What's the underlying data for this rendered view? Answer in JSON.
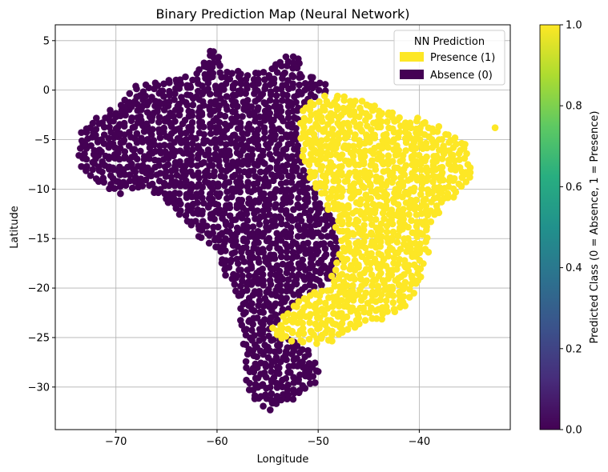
{
  "chart_data": {
    "type": "scatter",
    "title": "Binary Prediction Map (Neural Network)",
    "xlabel": "Longitude",
    "ylabel": "Latitude",
    "xlim": [
      -76,
      -31
    ],
    "ylim": [
      -34.3,
      6.6
    ],
    "xticks": [
      -70,
      -60,
      -50,
      -40
    ],
    "xtick_labels": [
      "−70",
      "−60",
      "−50",
      "−40"
    ],
    "yticks": [
      5,
      0,
      -5,
      -10,
      -15,
      -20,
      -25,
      -30
    ],
    "ytick_labels": [
      "5",
      "0",
      "−5",
      "−10",
      "−15",
      "−20",
      "−25",
      "−30"
    ],
    "grid": true,
    "legend": {
      "title": "NN Prediction",
      "position": "top-right",
      "entries": [
        {
          "label": "Presence (1)",
          "color": "#fde725"
        },
        {
          "label": "Absence (0)",
          "color": "#440154"
        }
      ]
    },
    "colorbar": {
      "label": "Predicted Class (0 = Absence, 1 = Presence)",
      "range": [
        0,
        1
      ],
      "ticks": [
        "0.0",
        "0.2",
        "0.4",
        "0.6",
        "0.8",
        "1.0"
      ],
      "colormap": "viridis"
    },
    "series": [
      {
        "name": "Absence (0)",
        "color": "#440154",
        "region_outline": [
          [
            -74,
            -4.3
          ],
          [
            -72,
            -2.8
          ],
          [
            -71,
            -2
          ],
          [
            -69.5,
            -1.3
          ],
          [
            -68,
            0.5
          ],
          [
            -66,
            0.8
          ],
          [
            -64,
            1.5
          ],
          [
            -62,
            1.8
          ],
          [
            -60.5,
            4.7
          ],
          [
            -59,
            1.8
          ],
          [
            -57,
            2
          ],
          [
            -55,
            2
          ],
          [
            -53.5,
            3.5
          ],
          [
            -52,
            4.2
          ],
          [
            -51.5,
            1.5
          ],
          [
            -50,
            1.4
          ],
          [
            -48.5,
            0.2
          ],
          [
            -49,
            -0.3
          ],
          [
            -50,
            -0.5
          ],
          [
            -51.5,
            -2
          ],
          [
            -52,
            -5
          ],
          [
            -51.5,
            -8
          ],
          [
            -50,
            -10.5
          ],
          [
            -48.5,
            -13
          ],
          [
            -47.7,
            -16
          ],
          [
            -48.5,
            -19
          ],
          [
            -51.5,
            -21
          ],
          [
            -53,
            -22.5
          ],
          [
            -55,
            -24.5
          ],
          [
            -52,
            -25.5
          ],
          [
            -50.5,
            -26.5
          ],
          [
            -49.7,
            -28.5
          ],
          [
            -50.5,
            -30
          ],
          [
            -52,
            -31
          ],
          [
            -53.5,
            -32
          ],
          [
            -55,
            -32.4
          ],
          [
            -57,
            -30.5
          ],
          [
            -57.3,
            -27
          ],
          [
            -57.5,
            -24
          ],
          [
            -58,
            -22
          ],
          [
            -58.3,
            -20.5
          ],
          [
            -60,
            -17
          ],
          [
            -62.5,
            -14
          ],
          [
            -64.5,
            -12
          ],
          [
            -66,
            -10.5
          ],
          [
            -67.5,
            -9.8
          ],
          [
            -69.5,
            -10.5
          ],
          [
            -71,
            -9.8
          ],
          [
            -73,
            -8.8
          ],
          [
            -74,
            -7.5
          ],
          [
            -73.8,
            -5.5
          ]
        ]
      },
      {
        "name": "Presence (1)",
        "color": "#fde725",
        "region_outline": [
          [
            -51.5,
            -1.5
          ],
          [
            -49,
            -0.3
          ],
          [
            -47.5,
            -0.5
          ],
          [
            -45,
            -1.3
          ],
          [
            -42,
            -2.5
          ],
          [
            -40,
            -2.8
          ],
          [
            -38,
            -3.5
          ],
          [
            -36.5,
            -4.8
          ],
          [
            -35.2,
            -5.3
          ],
          [
            -34.8,
            -7
          ],
          [
            -35,
            -9
          ],
          [
            -36,
            -10.3
          ],
          [
            -37.5,
            -12
          ],
          [
            -38.8,
            -13.5
          ],
          [
            -39,
            -16
          ],
          [
            -39.5,
            -18
          ],
          [
            -40.5,
            -20.5
          ],
          [
            -41.5,
            -22
          ],
          [
            -43,
            -23
          ],
          [
            -45,
            -23.5
          ],
          [
            -47,
            -24.2
          ],
          [
            -48.5,
            -25.5
          ],
          [
            -50,
            -25.8
          ],
          [
            -52.5,
            -25.5
          ],
          [
            -55.2,
            -24.7
          ],
          [
            -53.5,
            -22.5
          ],
          [
            -51.5,
            -21
          ],
          [
            -49,
            -19.5
          ],
          [
            -47.7,
            -16
          ],
          [
            -48.5,
            -13
          ],
          [
            -50,
            -10.5
          ],
          [
            -51.5,
            -8
          ],
          [
            -52,
            -5
          ]
        ],
        "outlier_points": [
          [
            -32.5,
            -3.8
          ]
        ]
      }
    ]
  }
}
